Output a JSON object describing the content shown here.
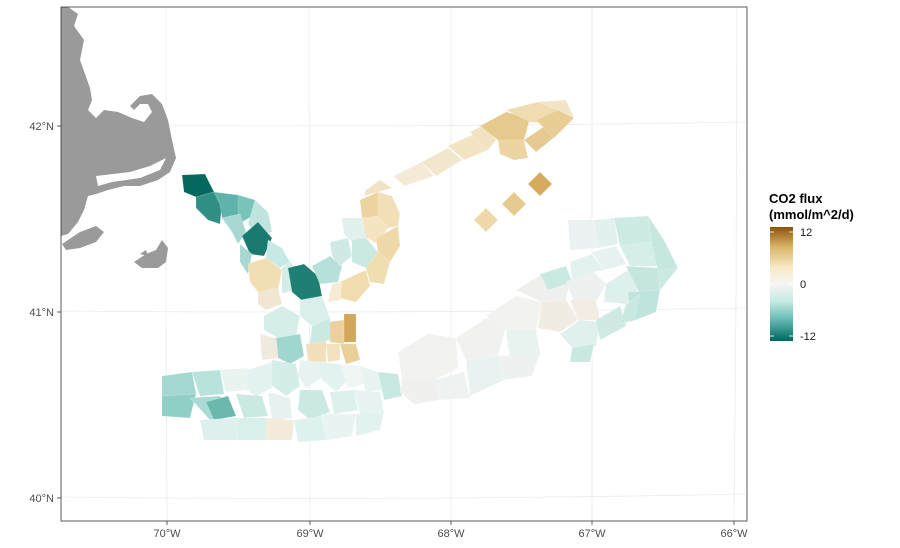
{
  "chart_data": {
    "type": "map-choropleth",
    "title": "",
    "x_axis": {
      "ticks": [
        "70°W",
        "69°W",
        "68°W",
        "67°W",
        "66°W"
      ],
      "values": [
        -70,
        -69,
        -68,
        -67,
        -66
      ]
    },
    "y_axis": {
      "ticks": [
        "40°N",
        "41°N",
        "42°N"
      ],
      "values": [
        40,
        41,
        42
      ]
    },
    "legend": {
      "title_line1": "CO2 flux",
      "title_line2": "(mmol/m^2/d)",
      "tick_labels": [
        "12",
        "0",
        "-12"
      ],
      "tick_values": [
        12,
        0,
        -12
      ],
      "range": [
        -14,
        14
      ],
      "placement": "right",
      "colors": [
        "#01665e",
        "#5ab4ac",
        "#c7eae5",
        "#f5f5f5",
        "#f6e8c3",
        "#d8b365",
        "#8c510a"
      ]
    },
    "colors": {
      "land": "#9a9a9a",
      "grid": "#ebebeb",
      "panel_border": "#333333"
    },
    "grid": true
  }
}
